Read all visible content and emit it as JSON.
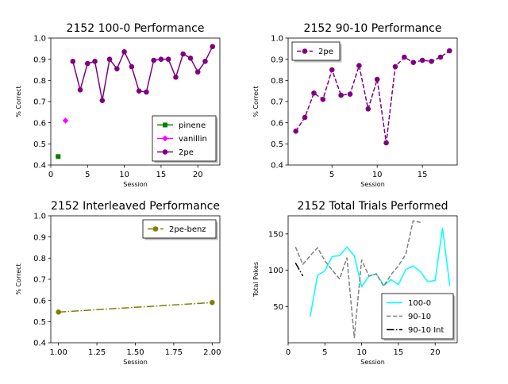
{
  "chart_data": [
    {
      "type": "line",
      "title": "2152 100-0 Performance",
      "xlabel": "Session",
      "ylabel": "% Correct",
      "xlim": [
        0,
        23
      ],
      "ylim": [
        0.4,
        1.0
      ],
      "xticks": [
        0,
        5,
        10,
        15,
        20
      ],
      "xtick_labels": [
        "0",
        "5",
        "10",
        "15",
        "20"
      ],
      "yticks": [
        0.4,
        0.5,
        0.6,
        0.7,
        0.8,
        0.9,
        1.0
      ],
      "ytick_labels": [
        "0.4",
        "0.5",
        "0.6",
        "0.7",
        "0.8",
        "0.9",
        "1.0"
      ],
      "legend": "lower-right",
      "series": [
        {
          "name": "pinene",
          "color": "#008000",
          "marker": "square",
          "dash": "solid",
          "x": [
            1
          ],
          "y": [
            0.44
          ]
        },
        {
          "name": "vanillin",
          "color": "#ff00ff",
          "marker": "diamond",
          "dash": "solid",
          "x": [
            2
          ],
          "y": [
            0.61
          ]
        },
        {
          "name": "2pe",
          "color": "#800080",
          "marker": "circle",
          "dash": "solid",
          "x": [
            3,
            4,
            5,
            6,
            7,
            8,
            9,
            10,
            11,
            12,
            13,
            14,
            15,
            16,
            17,
            18,
            19,
            20,
            21,
            22
          ],
          "y": [
            0.89,
            0.755,
            0.88,
            0.89,
            0.705,
            0.9,
            0.855,
            0.935,
            0.865,
            0.75,
            0.745,
            0.895,
            0.9,
            0.9,
            0.815,
            0.925,
            0.905,
            0.84,
            0.89,
            0.96
          ]
        }
      ]
    },
    {
      "type": "line",
      "title": "2152 90-10 Performance",
      "xlabel": "Session",
      "ylabel": "% Correct",
      "xlim": [
        0.15,
        18.85
      ],
      "ylim": [
        0.4,
        1.0
      ],
      "xticks": [
        5,
        10,
        15
      ],
      "xtick_labels": [
        "5",
        "10",
        "15"
      ],
      "yticks": [
        0.4,
        0.5,
        0.6,
        0.7,
        0.8,
        0.9,
        1.0
      ],
      "ytick_labels": [
        "0.4",
        "0.5",
        "0.6",
        "0.7",
        "0.8",
        "0.9",
        "1.0"
      ],
      "legend": "upper-left",
      "series": [
        {
          "name": "2pe",
          "color": "#800080",
          "marker": "circle",
          "dash": "dashed",
          "x": [
            1,
            2,
            3,
            4,
            5,
            6,
            7,
            8,
            9,
            10,
            11,
            12,
            13,
            14,
            15,
            16,
            17,
            18
          ],
          "y": [
            0.56,
            0.625,
            0.74,
            0.71,
            0.85,
            0.73,
            0.735,
            0.87,
            0.665,
            0.805,
            0.505,
            0.865,
            0.91,
            0.885,
            0.895,
            0.89,
            0.91,
            0.94
          ]
        }
      ]
    },
    {
      "type": "line",
      "title": "2152 Interleaved Performance",
      "xlabel": "Session",
      "ylabel": "% Correct",
      "xlim": [
        0.95,
        2.05
      ],
      "ylim": [
        0.4,
        1.0
      ],
      "xticks": [
        1.0,
        1.25,
        1.5,
        1.75,
        2.0
      ],
      "xtick_labels": [
        "1.00",
        "1.25",
        "1.50",
        "1.75",
        "2.00"
      ],
      "yticks": [
        0.4,
        0.5,
        0.6,
        0.7,
        0.8,
        0.9,
        1.0
      ],
      "ytick_labels": [
        "0.4",
        "0.5",
        "0.6",
        "0.7",
        "0.8",
        "0.9",
        "1.0"
      ],
      "legend": "upper-right",
      "series": [
        {
          "name": "2pe-benz",
          "color": "#808000",
          "marker": "circle",
          "dash": "dashdot",
          "x": [
            1,
            2
          ],
          "y": [
            0.545,
            0.59
          ]
        }
      ]
    },
    {
      "type": "line",
      "title": "2152 Total Trials Performed",
      "xlabel": "Session",
      "ylabel": "Total Pokes",
      "xlim": [
        0,
        23
      ],
      "ylim": [
        0,
        175
      ],
      "xticks": [
        0,
        5,
        10,
        15,
        20
      ],
      "xtick_labels": [
        "0",
        "5",
        "10",
        "15",
        "20"
      ],
      "yticks": [
        50,
        100,
        150
      ],
      "ytick_labels": [
        "50",
        "100",
        "150"
      ],
      "legend": "lower-right",
      "series": [
        {
          "name": "100-0",
          "color": "#00ffff",
          "marker": "none",
          "dash": "solid",
          "x": [
            3,
            4,
            5,
            6,
            7,
            8,
            9,
            10,
            11,
            12,
            13,
            14,
            15,
            16,
            17,
            18,
            19,
            20,
            21,
            22
          ],
          "y": [
            36,
            93,
            99,
            119,
            120,
            132,
            120,
            77,
            92,
            95,
            79,
            87,
            80,
            101,
            106,
            98,
            84,
            86,
            158,
            78
          ]
        },
        {
          "name": "90-10",
          "color": "#808080",
          "marker": "none",
          "dash": "dashed",
          "x": [
            1,
            2,
            3,
            4,
            5,
            6,
            7,
            8,
            9,
            10,
            11,
            12,
            13,
            14,
            15,
            16,
            17,
            18
          ],
          "y": [
            132,
            108,
            120,
            131,
            113,
            100,
            88,
            117,
            7,
            114,
            92,
            95,
            78,
            94,
            106,
            122,
            168,
            166
          ]
        },
        {
          "name": "90-10 Int",
          "color": "#000000",
          "marker": "none",
          "dash": "dashdot",
          "x": [
            1,
            2
          ],
          "y": [
            110,
            92
          ]
        }
      ]
    }
  ]
}
